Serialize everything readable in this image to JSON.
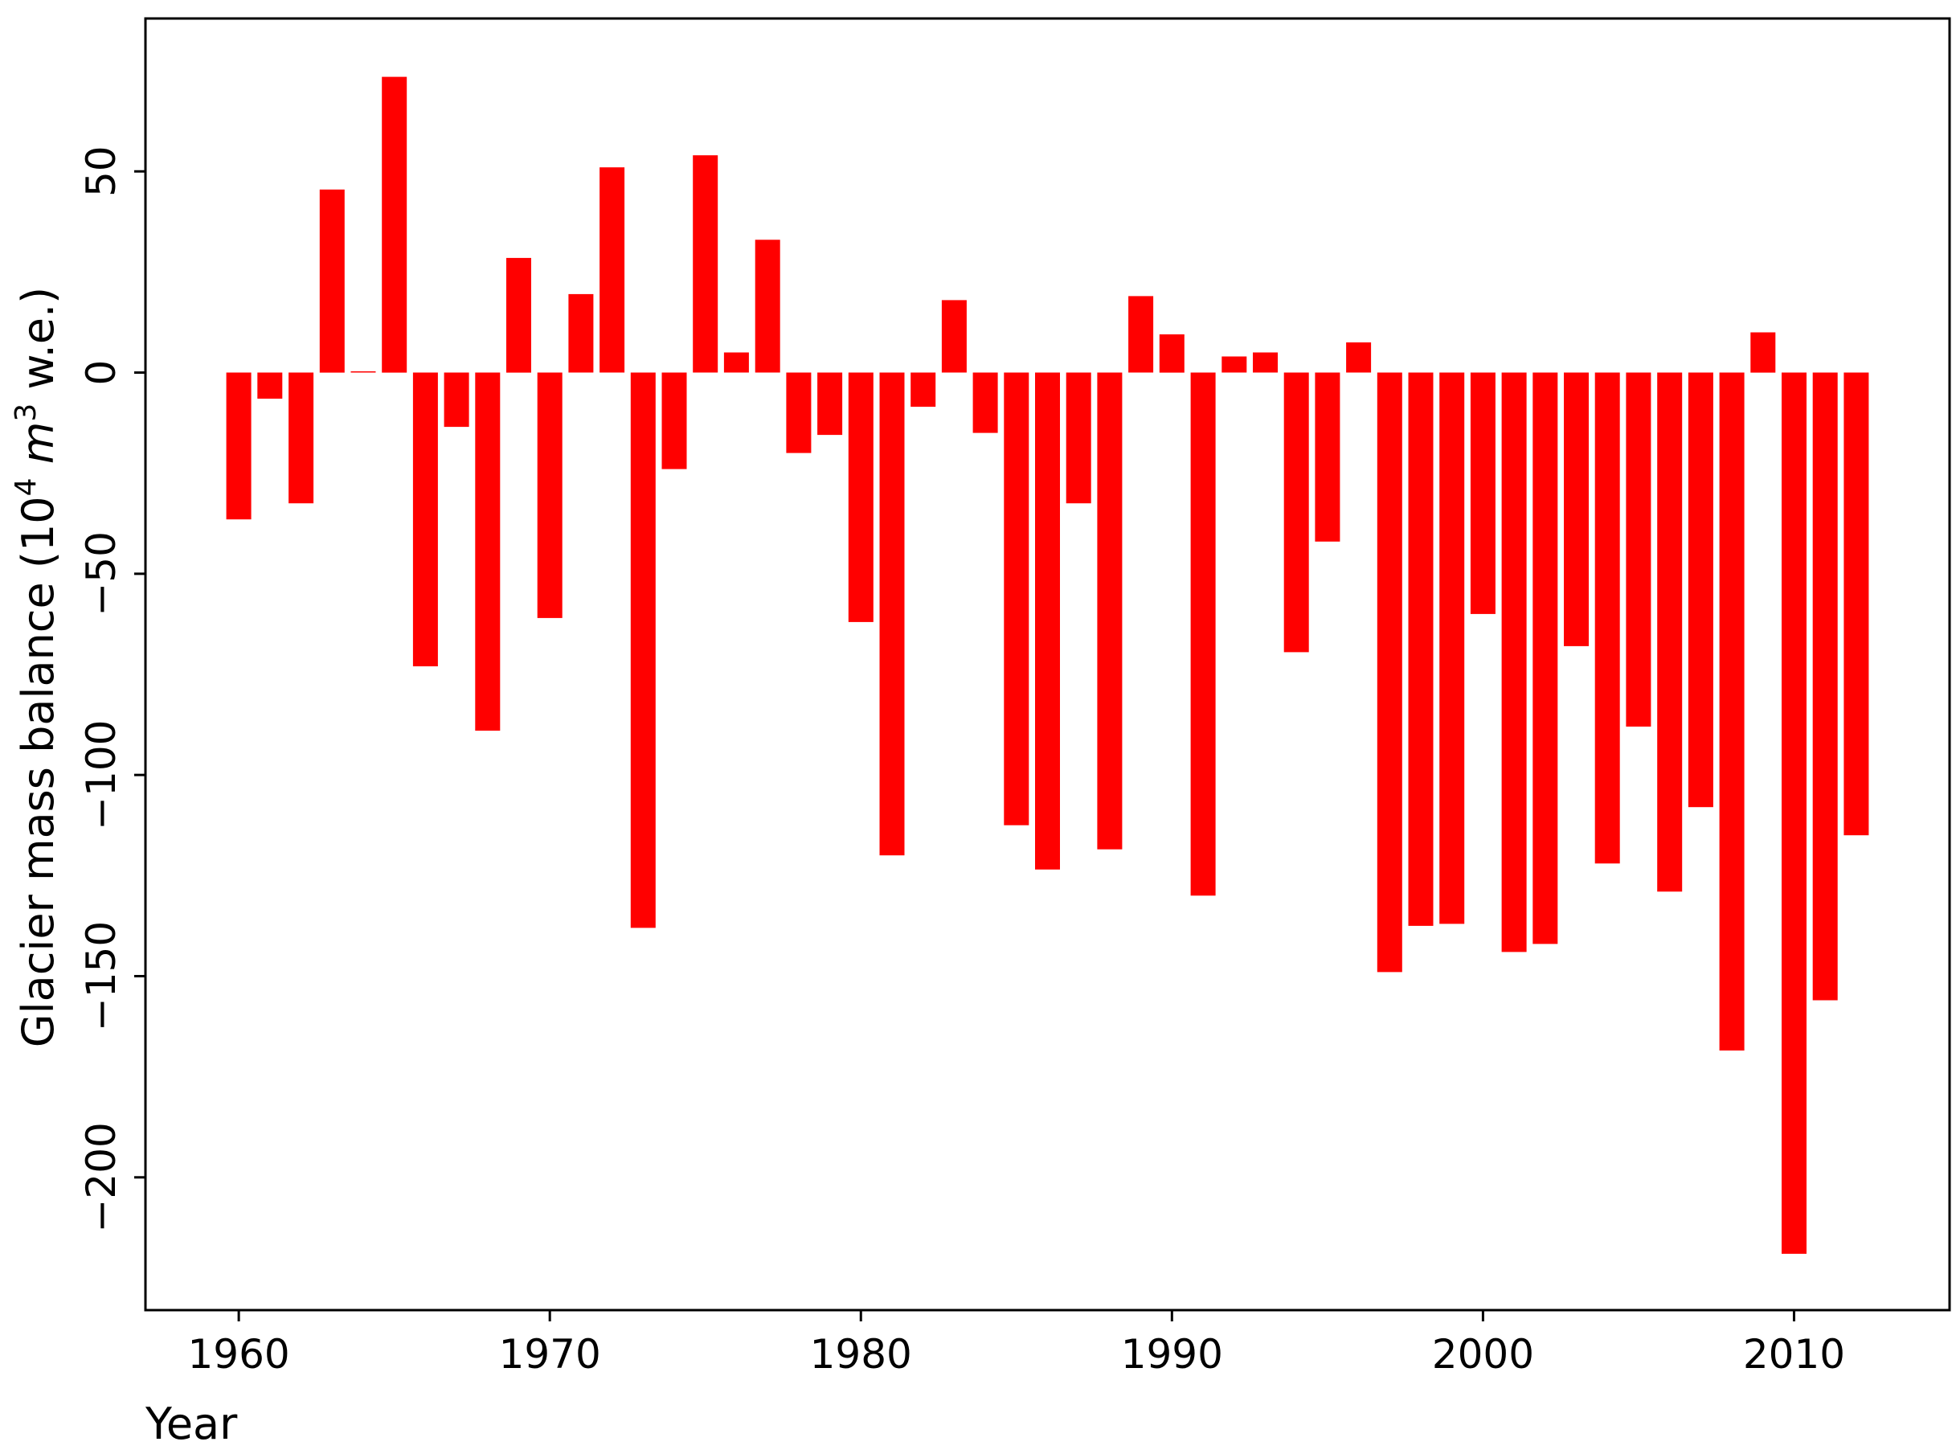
{
  "chart_data": {
    "type": "bar",
    "title": "",
    "xlabel": "Year",
    "ylabel_main": "Glacier mass balance  (10",
    "ylabel_exp": "4",
    "ylabel_unit": " m",
    "ylabel_unit_exp": "3",
    "ylabel_tail": " w.e.)",
    "xlim": [
      1957,
      2015
    ],
    "ylim": [
      -233,
      88
    ],
    "xticks": [
      1960,
      1970,
      1980,
      1990,
      2000,
      2010
    ],
    "yticks": [
      50,
      0,
      -50,
      -100,
      -150,
      -200
    ],
    "ytick_labels": [
      "50",
      "0",
      "−50",
      "−100",
      "−150",
      "−200"
    ],
    "bar_color": "#ff0000",
    "grid": false,
    "categories": [
      1960,
      1961,
      1962,
      1963,
      1964,
      1965,
      1966,
      1967,
      1968,
      1969,
      1970,
      1971,
      1972,
      1973,
      1974,
      1975,
      1976,
      1977,
      1978,
      1979,
      1980,
      1981,
      1982,
      1983,
      1984,
      1985,
      1986,
      1987,
      1988,
      1989,
      1990,
      1991,
      1992,
      1993,
      1994,
      1995,
      1996,
      1997,
      1998,
      1999,
      2000,
      2001,
      2002,
      2003,
      2004,
      2005,
      2006,
      2007,
      2008,
      2009,
      2010,
      2011,
      2012
    ],
    "values": [
      -36.5,
      -6.5,
      -32.5,
      45.5,
      0.3,
      73.5,
      -73,
      -13.5,
      -89,
      28.5,
      -61,
      19.5,
      51,
      -138,
      -24,
      54,
      5,
      33,
      -20,
      -15.5,
      -62,
      -120,
      -8.5,
      18,
      -15,
      -112.5,
      -123.5,
      -32.5,
      -118.5,
      19,
      9.5,
      -130,
      4,
      5,
      -69.5,
      -42,
      7.5,
      -149,
      -137.5,
      -137,
      -60,
      -144,
      -142,
      -68,
      -122,
      -88,
      -129,
      -108,
      -168.5,
      10,
      -219,
      -156,
      -115
    ]
  }
}
